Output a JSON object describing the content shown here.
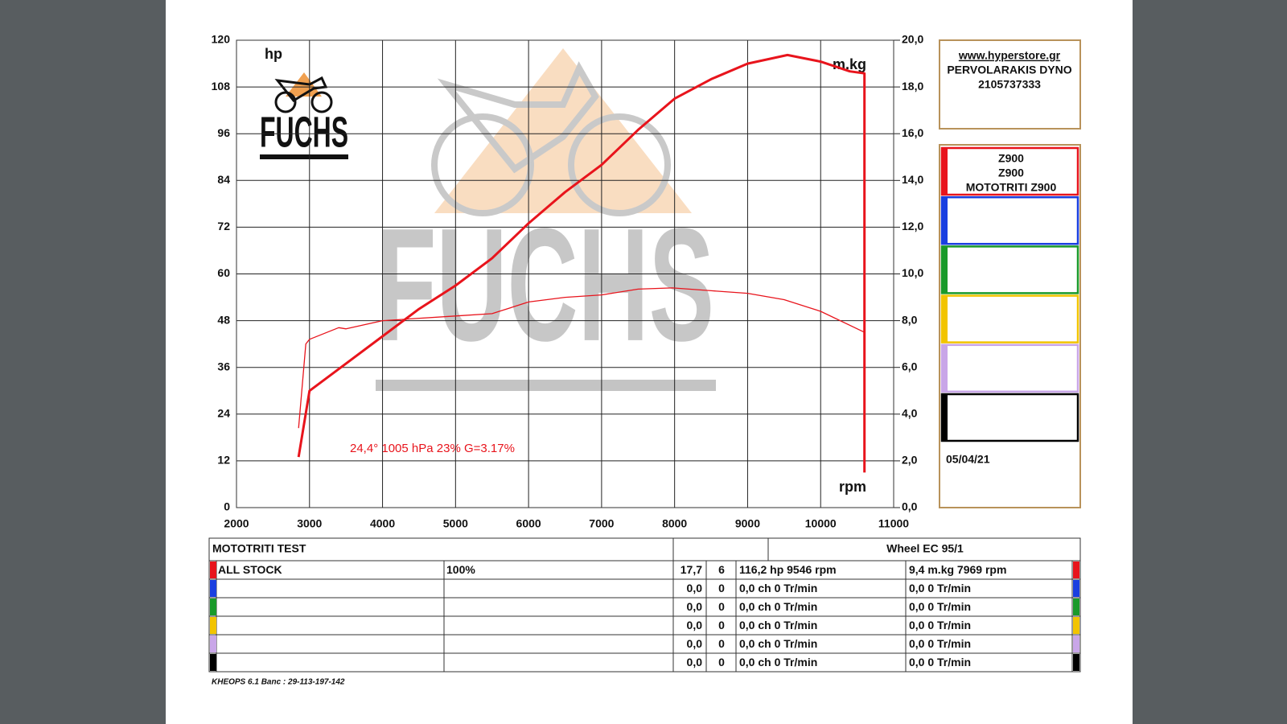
{
  "chart_data": {
    "type": "line",
    "y_label": "hp",
    "y2_label": "m.kg",
    "x_label": "rpm",
    "annotation": "24,4°  1005 hPa  23%    G=3.17%",
    "logo": "FUCHS",
    "xlim": [
      2000,
      11000
    ],
    "xticks": [
      2000,
      3000,
      4000,
      5000,
      6000,
      7000,
      8000,
      9000,
      10000,
      11000
    ],
    "ylim": [
      0,
      120
    ],
    "yticks": [
      0,
      12,
      24,
      36,
      48,
      60,
      72,
      84,
      96,
      108,
      120
    ],
    "y2lim": [
      0,
      20
    ],
    "y2ticks": [
      {
        "value": 0,
        "label": "0,0"
      },
      {
        "value": 2,
        "label": "2,0"
      },
      {
        "value": 4,
        "label": "4,0"
      },
      {
        "value": 6,
        "label": "6,0"
      },
      {
        "value": 8,
        "label": "8,0"
      },
      {
        "value": 10,
        "label": "10,0"
      },
      {
        "value": 12,
        "label": "12,0"
      },
      {
        "value": 14,
        "label": "14,0"
      },
      {
        "value": 16,
        "label": "16,0"
      },
      {
        "value": 18,
        "label": "18,0"
      },
      {
        "value": 20,
        "label": "20,0"
      }
    ],
    "grid": true,
    "series": [
      {
        "color": "#e8141c",
        "x": [
          2850,
          3000,
          3500,
          4000,
          4500,
          5000,
          5500,
          6000,
          6500,
          7000,
          7500,
          8000,
          8500,
          9000,
          9546,
          10000,
          10400,
          10600,
          10600
        ],
        "values": [
          13,
          30,
          37,
          44,
          51,
          57,
          64,
          73,
          81,
          88,
          97,
          105,
          110,
          114,
          116.2,
          114.5,
          112,
          111.5,
          9
        ]
      },
      {
        "color": "#e8141c",
        "axis": "y2",
        "x": [
          2850,
          2950,
          3000,
          3400,
          3500,
          4000,
          5000,
          5500,
          6000,
          6500,
          7000,
          7500,
          7969,
          8500,
          9000,
          9500,
          10000,
          10600
        ],
        "values": [
          3.4,
          7.0,
          7.2,
          7.7,
          7.65,
          8.0,
          8.2,
          8.3,
          8.8,
          9.0,
          9.1,
          9.35,
          9.4,
          9.28,
          9.17,
          8.9,
          8.4,
          7.5
        ]
      }
    ]
  },
  "info": {
    "site": "www.hyperstore.gr",
    "shop": "PERVOLARAKIS DYNO",
    "phone": "2105737333",
    "date": "05/04/21"
  },
  "legend": {
    "lines": [
      "Z900",
      "Z900",
      "MOTOTRITI Z900"
    ],
    "colors": [
      "#e8141c",
      "#1a3fe0",
      "#1a9a2a",
      "#f2c400",
      "#c9a6e8",
      "#000000"
    ]
  },
  "table": {
    "title": "MOTOTRITI TEST",
    "bench": "Wheel EC 95/1",
    "rows": [
      [
        "ALL STOCK",
        "100%",
        "17,7",
        "6",
        "116,2 hp 9546 rpm",
        "9,4 m.kg 7969 rpm"
      ],
      [
        "0,0",
        "0",
        "0,0 ch 0 Tr/min",
        "0,0  0 Tr/min"
      ],
      [
        "0,0",
        "0",
        "0,0 ch 0 Tr/min",
        "0,0  0 Tr/min"
      ],
      [
        "0,0",
        "0",
        "0,0 ch 0 Tr/min",
        "0,0  0 Tr/min"
      ],
      [
        "0,0",
        "0",
        "0,0 ch 0 Tr/min",
        "0,0  0 Tr/min"
      ],
      [
        "0,0",
        "0",
        "0,0 ch 0 Tr/min",
        "0,0  0 Tr/min"
      ]
    ]
  },
  "footer": "KHEOPS 6.1  Banc : 29-113-197-142"
}
